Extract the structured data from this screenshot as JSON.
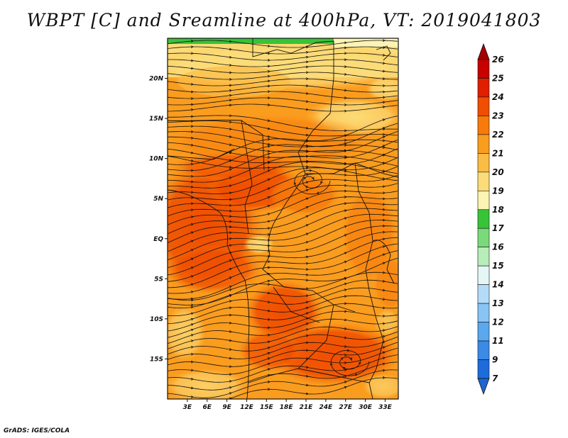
{
  "title": "WBPT [C] and Sreamline at 400hPa, VT: 2019041803",
  "credit": "GrADS: IGES/COLA",
  "map": {
    "lon_range": [
      0,
      35
    ],
    "lat_range": [
      -20,
      25
    ],
    "lat_ticks": [
      {
        "label": "20N",
        "value": 20
      },
      {
        "label": "15N",
        "value": 15
      },
      {
        "label": "10N",
        "value": 10
      },
      {
        "label": "5N",
        "value": 5
      },
      {
        "label": "EQ",
        "value": 0
      },
      {
        "label": "5S",
        "value": -5
      },
      {
        "label": "10S",
        "value": -10
      },
      {
        "label": "15S",
        "value": -15
      }
    ],
    "lon_ticks": [
      {
        "label": "3E",
        "value": 3
      },
      {
        "label": "6E",
        "value": 6
      },
      {
        "label": "9E",
        "value": 9
      },
      {
        "label": "12E",
        "value": 12
      },
      {
        "label": "15E",
        "value": 15
      },
      {
        "label": "18E",
        "value": 18
      },
      {
        "label": "21E",
        "value": 21
      },
      {
        "label": "24E",
        "value": 24
      },
      {
        "label": "27E",
        "value": 27
      },
      {
        "label": "30E",
        "value": 30
      },
      {
        "label": "33E",
        "value": 33
      }
    ]
  },
  "colorbar": {
    "levels": [
      {
        "label": "26",
        "color": "#a50000"
      },
      {
        "label": "25",
        "color": "#c80000"
      },
      {
        "label": "24",
        "color": "#e11e00"
      },
      {
        "label": "23",
        "color": "#f04e00"
      },
      {
        "label": "22",
        "color": "#f77a0a"
      },
      {
        "label": "21",
        "color": "#fa9c1e"
      },
      {
        "label": "20",
        "color": "#fbbc46"
      },
      {
        "label": "19",
        "color": "#fcdc78"
      },
      {
        "label": "18",
        "color": "#fdf3b4"
      },
      {
        "label": "17",
        "color": "#37c437"
      },
      {
        "label": "16",
        "color": "#7ada7a"
      },
      {
        "label": "15",
        "color": "#b8ecb8"
      },
      {
        "label": "14",
        "color": "#e4f6f6"
      },
      {
        "label": "13",
        "color": "#b4dcf8"
      },
      {
        "label": "12",
        "color": "#88c4f4"
      },
      {
        "label": "11",
        "color": "#5aa8ee"
      },
      {
        "label": "9",
        "color": "#3a8ae6"
      },
      {
        "label": "7",
        "color": "#1e6cdc"
      }
    ],
    "under_color": "#1e64d2"
  }
}
